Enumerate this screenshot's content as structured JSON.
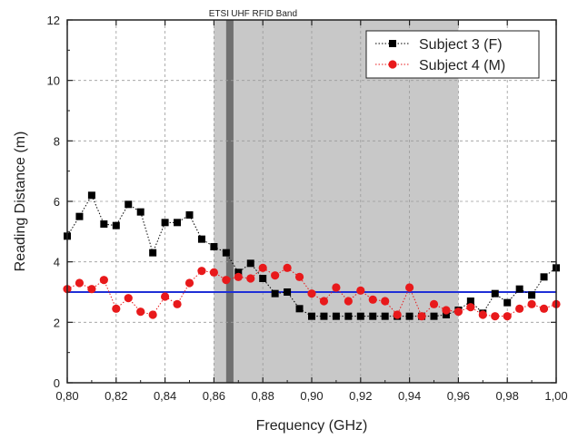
{
  "chart_data": {
    "type": "line",
    "xlabel": "Frequency (GHz)",
    "ylabel": "Reading Distance (m)",
    "xlim": [
      0.8,
      1.0
    ],
    "ylim": [
      0,
      12
    ],
    "x_ticks": [
      "0,80",
      "0,82",
      "0,84",
      "0,86",
      "0,88",
      "0,90",
      "0,92",
      "0,94",
      "0,96",
      "0,98",
      "1,00"
    ],
    "y_ticks": [
      "0",
      "2",
      "4",
      "6",
      "8",
      "10",
      "12"
    ],
    "grid": "dashed",
    "legend_position": "top-right",
    "bands": [
      {
        "label": "UHF RFID Band",
        "x0": 0.86,
        "x1": 0.96,
        "color": "#c8c8c8"
      },
      {
        "label": "ETSI",
        "x0": 0.865,
        "x1": 0.868,
        "color": "#707070"
      }
    ],
    "reference_line": {
      "y": 3.0,
      "color": "#1f2fd6"
    },
    "x": [
      0.8,
      0.805,
      0.81,
      0.815,
      0.82,
      0.825,
      0.83,
      0.835,
      0.84,
      0.845,
      0.85,
      0.855,
      0.86,
      0.865,
      0.87,
      0.875,
      0.88,
      0.885,
      0.89,
      0.895,
      0.9,
      0.905,
      0.91,
      0.915,
      0.92,
      0.925,
      0.93,
      0.935,
      0.94,
      0.945,
      0.95,
      0.955,
      0.96,
      0.965,
      0.97,
      0.975,
      0.98,
      0.985,
      0.99,
      0.995,
      1.0
    ],
    "series": [
      {
        "name": "Subject 3 (F)",
        "marker": "square",
        "color": "#000000",
        "values": [
          4.85,
          5.5,
          6.2,
          5.25,
          5.2,
          5.9,
          5.65,
          4.3,
          5.3,
          5.3,
          5.55,
          4.75,
          4.5,
          4.3,
          3.65,
          3.95,
          3.45,
          2.95,
          3.0,
          2.45,
          2.2,
          2.2,
          2.2,
          2.2,
          2.2,
          2.2,
          2.2,
          2.2,
          2.2,
          2.2,
          2.2,
          2.25,
          2.4,
          2.7,
          2.3,
          2.95,
          2.65,
          3.1,
          2.9,
          3.5,
          3.8
        ]
      },
      {
        "name": "Subject 4 (M)",
        "marker": "circle",
        "color": "#e8191b",
        "values": [
          3.1,
          3.3,
          3.1,
          3.4,
          2.45,
          2.8,
          2.35,
          2.25,
          2.85,
          2.6,
          3.3,
          3.7,
          3.65,
          3.4,
          3.5,
          3.45,
          3.8,
          3.55,
          3.8,
          3.5,
          2.95,
          2.7,
          3.15,
          2.7,
          3.05,
          2.75,
          2.7,
          2.25,
          3.15,
          2.2,
          2.6,
          2.4,
          2.35,
          2.5,
          2.25,
          2.2,
          2.2,
          2.45,
          2.6,
          2.45,
          2.6
        ]
      }
    ]
  }
}
